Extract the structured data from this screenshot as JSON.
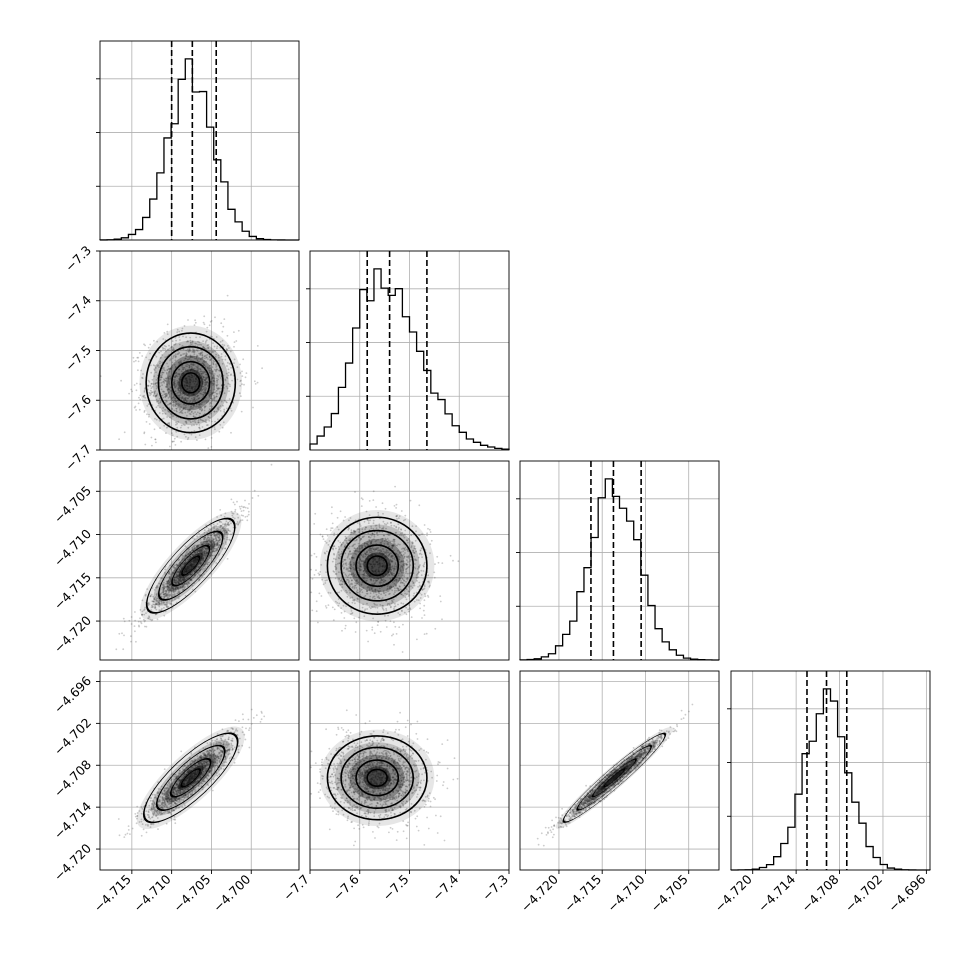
{
  "chart_data": {
    "type": "corner",
    "parameters": 4,
    "grid": true,
    "axes": [
      {
        "index": 0,
        "range": [
          -4.719,
          -4.694
        ],
        "ticks": [
          "−4.715",
          "−4.710",
          "−4.705",
          "−4.700"
        ],
        "tick_values": [
          -4.715,
          -4.71,
          -4.705,
          -4.7
        ],
        "quantiles": [
          -4.71,
          -4.7074,
          -4.7044
        ],
        "peak": -4.7076,
        "sigma": 0.0028
      },
      {
        "index": 1,
        "range": [
          -7.7,
          -7.3
        ],
        "ticks": [
          "−7.7",
          "−7.6",
          "−7.5",
          "−7.4",
          "−7.3"
        ],
        "tick_values": [
          -7.7,
          -7.6,
          -7.5,
          -7.4,
          -7.3
        ],
        "quantiles": [
          -7.585,
          -7.54,
          -7.465
        ],
        "peak": -7.565,
        "sigma": 0.05
      },
      {
        "index": 2,
        "range": [
          -4.7245,
          -4.7015
        ],
        "ticks": [
          "−4.720",
          "−4.715",
          "−4.710",
          "−4.705"
        ],
        "tick_values": [
          -4.72,
          -4.715,
          -4.71,
          -4.705
        ],
        "quantiles": [
          -4.7163,
          -4.7137,
          -4.7105
        ],
        "peak": -4.7136,
        "sigma": 0.0028
      },
      {
        "index": 3,
        "range": [
          -4.723,
          -4.6955
        ],
        "ticks": [
          "−4.720",
          "−4.714",
          "−4.708",
          "−4.702",
          "−4.696"
        ],
        "tick_values": [
          -4.72,
          -4.714,
          -4.708,
          -4.702,
          -4.696
        ],
        "quantiles": [
          -4.7125,
          -4.7098,
          -4.707
        ],
        "peak": -4.7098,
        "sigma": 0.003
      },
      {
        "index": 4,
        "y_range_only": true
      }
    ],
    "row_ranges": {
      "1": {
        "range": [
          -7.7,
          -7.3
        ],
        "ticks": [
          "−7.3",
          "−7.4",
          "−7.5",
          "−7.6",
          "−7.7"
        ],
        "tick_values": [
          -7.3,
          -7.4,
          -7.5,
          -7.6,
          -7.7
        ]
      },
      "2": {
        "range": [
          -4.7245,
          -4.7015
        ],
        "ticks": [
          "−4.705",
          "−4.710",
          "−4.715",
          "−4.720"
        ],
        "tick_values": [
          -4.705,
          -4.71,
          -4.715,
          -4.72
        ]
      },
      "3": {
        "range": [
          -4.723,
          -4.6945
        ],
        "ticks": [
          "−4.696",
          "−4.702",
          "−4.708",
          "−4.714",
          "−4.720"
        ],
        "tick_values": [
          -4.696,
          -4.702,
          -4.708,
          -4.714,
          -4.72
        ]
      }
    },
    "pairs": [
      {
        "x": 0,
        "y": 1,
        "corr": 0.05
      },
      {
        "x": 0,
        "y": 2,
        "corr": 0.93
      },
      {
        "x": 1,
        "y": 2,
        "corr": -0.05
      },
      {
        "x": 0,
        "y": 3,
        "corr": 0.9
      },
      {
        "x": 1,
        "y": 3,
        "corr": -0.05
      },
      {
        "x": 2,
        "y": 3,
        "corr": 0.98
      }
    ],
    "hist_ticks": 3,
    "colors": {
      "points": "#555555",
      "density": "#000000",
      "grid": "#b0b0b0",
      "lines": "#000000"
    }
  }
}
